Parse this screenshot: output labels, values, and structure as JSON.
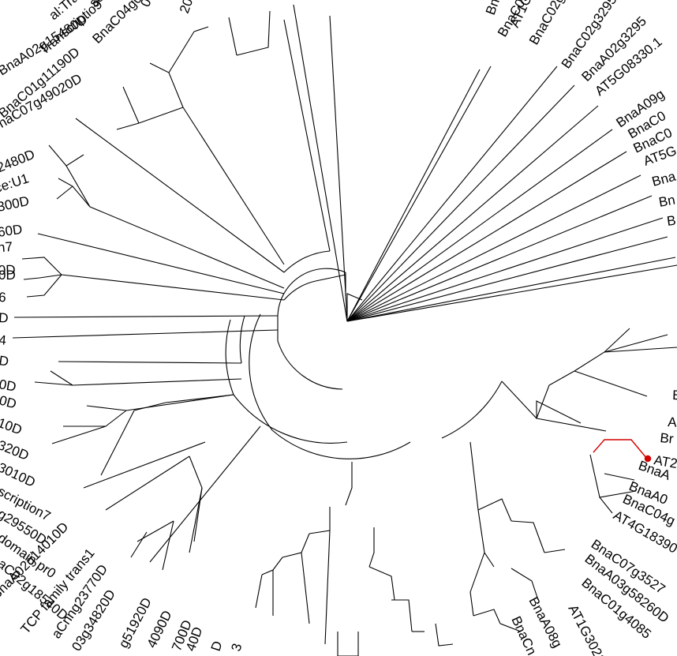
{
  "highlight_color": "#d40000",
  "leaf_labels": [
    {
      "text": "BnaC01g11190D"
    },
    {
      "text": "BnaA02g15480D"
    },
    {
      "text": "Transcriptio9"
    },
    {
      "text": "BnaC04g04400D"
    },
    {
      "text": "al:Transcription7"
    },
    {
      "text": "scription7"
    },
    {
      "text": "00900D"
    },
    {
      "text": "20D"
    },
    {
      "text": "BnaC07g49020D"
    },
    {
      "text": "32480D"
    },
    {
      "text": "rce:U1"
    },
    {
      "text": "300D"
    },
    {
      "text": "60D"
    },
    {
      "text": "on7"
    },
    {
      "text": "0D"
    },
    {
      "text": "0D"
    },
    {
      "text": "6"
    },
    {
      "text": "D"
    },
    {
      "text": "4"
    },
    {
      "text": "D"
    },
    {
      "text": "0D"
    },
    {
      "text": "0D"
    },
    {
      "text": "10D"
    },
    {
      "text": "320D"
    },
    {
      "text": "3010D"
    },
    {
      "text": "scription7"
    },
    {
      "text": "g29550D"
    },
    {
      "text": "domain pr0"
    },
    {
      "text": "aC02g18540D"
    },
    {
      "text": "BnaA02g14010D"
    },
    {
      "text": "TCP family trans1"
    },
    {
      "text": "aCnng23770D"
    },
    {
      "text": "03g34820D"
    },
    {
      "text": "g51920D"
    },
    {
      "text": "4090D"
    },
    {
      "text": "700D"
    },
    {
      "text": "40D"
    },
    {
      "text": "D"
    },
    {
      "text": "3"
    },
    {
      "text": "AT1G30210"
    },
    {
      "text": "BnaA08g"
    },
    {
      "text": "BnaCn"
    },
    {
      "text": "BnaC01g4085"
    },
    {
      "text": "BnaA03g58260D"
    },
    {
      "text": "BnaC07g3527"
    },
    {
      "text": "AT4G18390"
    },
    {
      "text": "BnaC04g"
    },
    {
      "text": "BnaA0"
    },
    {
      "text": "BnaA"
    },
    {
      "text": "AT2"
    },
    {
      "text": "Br"
    },
    {
      "text": "A"
    },
    {
      "text": "B"
    },
    {
      "text": "BnaC02g41"
    },
    {
      "text": "BnaC09g"
    },
    {
      "text": "AT1G"
    },
    {
      "text": "Bna"
    },
    {
      "text": "BnaC02g32950"
    },
    {
      "text": "BnaA02g3295"
    },
    {
      "text": "AT5G08330.1"
    },
    {
      "text": "BnaA09g"
    },
    {
      "text": "BnaC0"
    },
    {
      "text": "BnaC0"
    },
    {
      "text": "AT5G"
    },
    {
      "text": "Bna"
    },
    {
      "text": "Bn"
    },
    {
      "text": "B"
    }
  ]
}
